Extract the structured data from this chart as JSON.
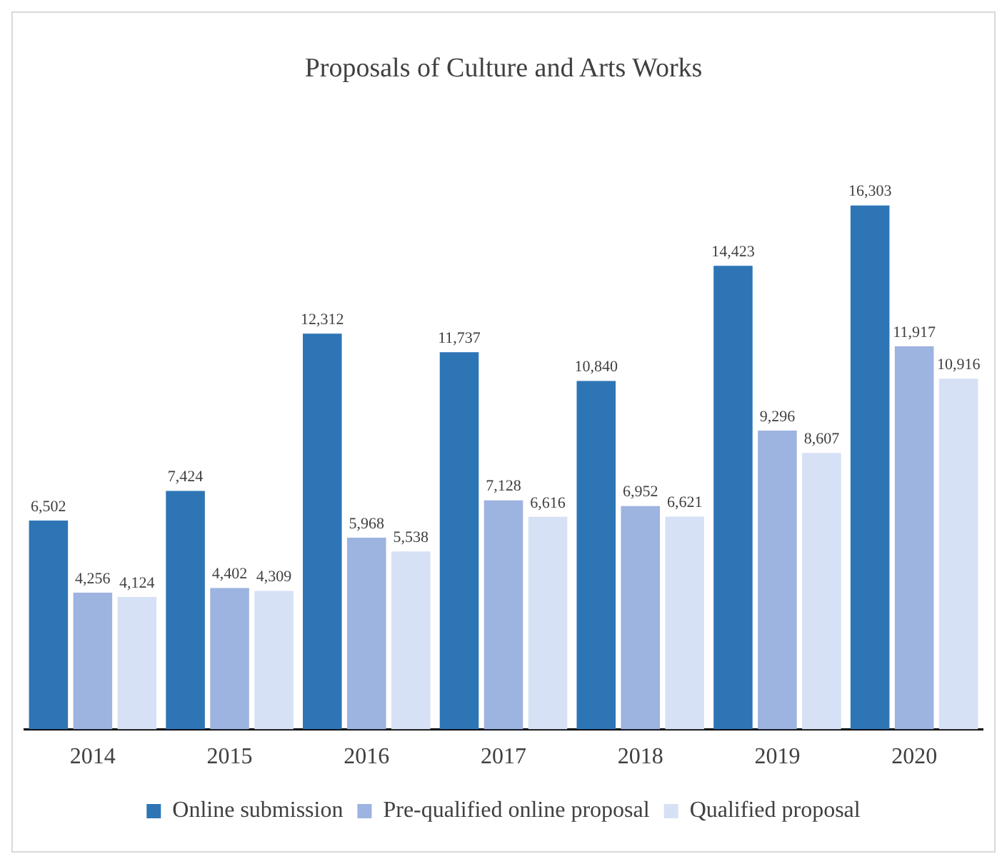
{
  "chart_data": {
    "type": "bar",
    "title": "Proposals of Culture and Arts Works",
    "categories": [
      "2014",
      "2015",
      "2016",
      "2017",
      "2018",
      "2019",
      "2020"
    ],
    "series": [
      {
        "name": "Online submission",
        "color": "#2e75b6",
        "values": [
          6502,
          7424,
          12312,
          11737,
          10840,
          14423,
          16303
        ],
        "value_labels": [
          "6,502",
          "7,424",
          "12,312",
          "11,737",
          "10,840",
          "14,423",
          "16,303"
        ]
      },
      {
        "name": "Pre-qualified online proposal",
        "color": "#9db3e0",
        "values": [
          4256,
          4402,
          5968,
          7128,
          6952,
          9296,
          11917
        ],
        "value_labels": [
          "4,256",
          "4,402",
          "5,968",
          "7,128",
          "6,952",
          "9,296",
          "11,917"
        ]
      },
      {
        "name": "Qualified proposal",
        "color": "#d6e1f5",
        "values": [
          4124,
          4309,
          5538,
          6616,
          6621,
          8607,
          10916
        ],
        "value_labels": [
          "4,124",
          "4,309",
          "5,538",
          "6,616",
          "6,621",
          "8,607",
          "10,916"
        ]
      }
    ],
    "legend": "bottom",
    "grid": false,
    "tick_labels": "x"
  }
}
